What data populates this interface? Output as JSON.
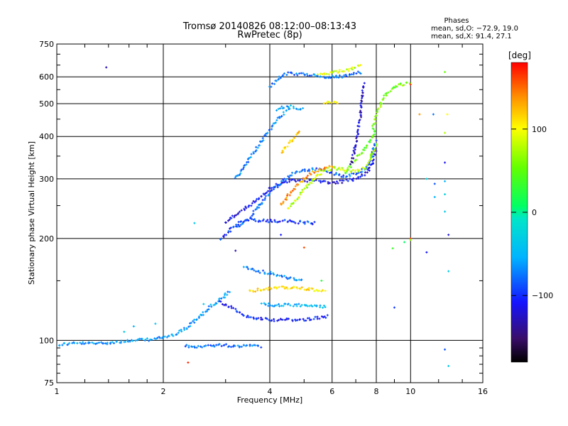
{
  "chart_data": {
    "type": "scatter",
    "title": "Tromsø 20140826 08:12:00–08:13:43",
    "subtitle": "RwPretec (8p)",
    "xlabel": "Frequency [MHz]",
    "ylabel": "Stationary phase Virtual Height [km]",
    "x_scale": "log",
    "y_scale": "log",
    "xlim": [
      1,
      16
    ],
    "ylim": [
      75,
      750
    ],
    "grid": true,
    "xticks": [
      1,
      2,
      4,
      6,
      8,
      10,
      16
    ],
    "xtick_labels": [
      "1",
      "2",
      "4",
      "6",
      "8",
      "10",
      "16"
    ],
    "yticks": [
      75,
      100,
      200,
      300,
      400,
      500,
      600,
      750
    ],
    "ytick_labels": [
      "75",
      "100",
      "200",
      "300",
      "400",
      "500",
      "600",
      "750"
    ],
    "phase_box": {
      "heading": "Phases",
      "line_o": "mean, sd,O: −72.9, 19.0",
      "line_x": "mean, sd,X:  91.4, 27.1"
    },
    "colorbar": {
      "label": "[deg]",
      "range": [
        -180,
        180
      ],
      "ticks": [
        100,
        0,
        -100
      ],
      "tick_labels": [
        "100",
        "0",
        "−100"
      ]
    },
    "traces": [
      {
        "x": [
          1.0,
          1.1,
          1.3,
          1.5,
          1.7,
          1.9,
          2.1,
          2.3,
          2.5,
          2.7,
          2.9,
          3.1
        ],
        "y": [
          97,
          98,
          98,
          99,
          100,
          101,
          103,
          108,
          116,
          125,
          132,
          140
        ],
        "phase": -70
      },
      {
        "x": [
          2.9,
          3.1,
          3.3,
          3.5,
          3.8,
          4.1,
          4.4,
          4.7,
          5.0,
          5.3,
          5.6,
          5.9
        ],
        "y": [
          130,
          125,
          120,
          117,
          116,
          115,
          115,
          115,
          115,
          116,
          117,
          118
        ],
        "phase": -105
      },
      {
        "x": [
          3.5,
          3.9,
          4.3,
          4.7,
          5.0,
          5.3,
          5.6,
          5.8
        ],
        "y": [
          140,
          142,
          143,
          143,
          142,
          141,
          140,
          140
        ],
        "phase": 110
      },
      {
        "x": [
          3.8,
          4.1,
          4.4,
          4.7,
          5.0,
          5.4,
          5.8
        ],
        "y": [
          128,
          127,
          127,
          127,
          127,
          126,
          126
        ],
        "phase": -55
      },
      {
        "x": [
          3.4,
          3.7,
          4.0,
          4.3,
          4.6,
          5.0
        ],
        "y": [
          165,
          160,
          158,
          155,
          152,
          150
        ],
        "phase": -75
      },
      {
        "x": [
          2.3,
          2.6,
          2.9,
          3.2,
          3.5,
          3.8
        ],
        "y": [
          96,
          96,
          97,
          96,
          97,
          96
        ],
        "phase": -80
      },
      {
        "x": [
          2.9,
          3.0,
          3.1,
          3.2,
          3.3,
          3.5,
          3.7,
          4.0,
          4.3,
          4.6,
          5.0,
          5.4
        ],
        "y": [
          200,
          205,
          212,
          218,
          223,
          226,
          226,
          225,
          225,
          224,
          223,
          222
        ],
        "phase": -100
      },
      {
        "x": [
          3.0,
          3.2,
          3.5,
          3.8,
          4.1,
          4.4,
          4.7,
          5.0,
          5.3,
          5.6,
          6.0,
          6.5,
          7.0,
          7.4,
          7.8,
          8.0
        ],
        "y": [
          222,
          235,
          250,
          268,
          285,
          294,
          297,
          297,
          296,
          294,
          292,
          295,
          300,
          310,
          330,
          370
        ],
        "phase": -115
      },
      {
        "x": [
          3.2,
          3.5,
          3.8,
          4.1,
          4.4,
          4.7,
          5.0,
          5.3,
          5.6,
          6.0,
          6.5,
          7.0,
          7.4,
          7.7,
          8.0
        ],
        "y": [
          215,
          230,
          255,
          280,
          300,
          312,
          318,
          320,
          318,
          312,
          305,
          310,
          320,
          340,
          390
        ],
        "phase": -85
      },
      {
        "x": [
          4.5,
          4.8,
          5.1,
          5.4,
          5.7,
          6.0,
          6.3,
          6.6,
          7.0,
          7.5,
          8.0
        ],
        "y": [
          245,
          265,
          285,
          305,
          318,
          322,
          322,
          318,
          315,
          325,
          380
        ],
        "phase": 80
      },
      {
        "x": [
          4.3,
          4.6,
          4.9,
          5.2,
          5.5,
          5.8,
          6.1
        ],
        "y": [
          250,
          275,
          295,
          310,
          320,
          325,
          325
        ],
        "phase": 140
      },
      {
        "x": [
          6.5,
          6.8,
          7.1,
          7.4,
          7.7,
          8.0
        ],
        "y": [
          310,
          330,
          350,
          370,
          390,
          420
        ],
        "phase": 55
      },
      {
        "x": [
          3.2,
          3.4,
          3.6,
          3.8,
          4.0,
          4.2,
          4.4,
          4.6
        ],
        "y": [
          300,
          330,
          360,
          390,
          420,
          450,
          470,
          485
        ],
        "phase": -75
      },
      {
        "x": [
          4.2,
          4.4,
          4.6,
          4.8,
          5.0
        ],
        "y": [
          480,
          490,
          490,
          485,
          480
        ],
        "phase": -60
      },
      {
        "x": [
          4.3,
          4.5,
          4.7,
          4.9
        ],
        "y": [
          360,
          380,
          400,
          420
        ],
        "phase": 120
      },
      {
        "x": [
          4.0,
          4.2,
          4.4,
          4.6,
          4.8,
          5.0,
          5.3,
          5.6,
          5.9,
          6.2,
          6.5,
          6.8,
          7.0,
          7.3
        ],
        "y": [
          560,
          590,
          610,
          615,
          612,
          608,
          605,
          602,
          600,
          600,
          602,
          608,
          615,
          620
        ],
        "phase": -80
      },
      {
        "x": [
          5.5,
          5.8,
          6.1,
          6.4,
          6.7,
          7.0,
          7.3
        ],
        "y": [
          610,
          615,
          620,
          625,
          630,
          640,
          650
        ],
        "phase": 90
      },
      {
        "x": [
          6.8,
          7.0,
          7.2,
          7.3,
          7.4
        ],
        "y": [
          330,
          380,
          450,
          520,
          580
        ],
        "phase": -125
      },
      {
        "x": [
          5.7,
          6.0,
          6.3
        ],
        "y": [
          505,
          505,
          505
        ],
        "phase": 100
      },
      {
        "x": [
          7.8,
          8.0,
          8.3,
          8.6,
          9.0,
          9.5,
          10.0
        ],
        "y": [
          420,
          460,
          510,
          540,
          560,
          570,
          575
        ],
        "phase": 60
      }
    ],
    "points": [
      {
        "x": 1.38,
        "y": 640,
        "phase": -130
      },
      {
        "x": 2.45,
        "y": 222,
        "phase": -45
      },
      {
        "x": 3.2,
        "y": 184,
        "phase": -130
      },
      {
        "x": 2.35,
        "y": 86,
        "phase": 170
      },
      {
        "x": 5.0,
        "y": 188,
        "phase": 160
      },
      {
        "x": 8.9,
        "y": 187,
        "phase": 40
      },
      {
        "x": 9.6,
        "y": 195,
        "phase": 10
      },
      {
        "x": 10.0,
        "y": 200,
        "phase": 170
      },
      {
        "x": 9.0,
        "y": 125,
        "phase": -100
      },
      {
        "x": 10.0,
        "y": 570,
        "phase": 170
      },
      {
        "x": 10.0,
        "y": 198,
        "phase": 70
      },
      {
        "x": 10.6,
        "y": 465,
        "phase": 140
      },
      {
        "x": 11.6,
        "y": 465,
        "phase": -80
      },
      {
        "x": 11.1,
        "y": 300,
        "phase": -30
      },
      {
        "x": 11.1,
        "y": 182,
        "phase": -110
      },
      {
        "x": 11.7,
        "y": 290,
        "phase": -90
      },
      {
        "x": 11.7,
        "y": 265,
        "phase": -60
      },
      {
        "x": 12.5,
        "y": 410,
        "phase": 80
      },
      {
        "x": 12.5,
        "y": 335,
        "phase": -115
      },
      {
        "x": 12.5,
        "y": 295,
        "phase": -60
      },
      {
        "x": 12.5,
        "y": 270,
        "phase": -30
      },
      {
        "x": 12.5,
        "y": 240,
        "phase": -40
      },
      {
        "x": 12.8,
        "y": 205,
        "phase": -120
      },
      {
        "x": 12.8,
        "y": 160,
        "phase": -40
      },
      {
        "x": 12.5,
        "y": 94,
        "phase": -90
      },
      {
        "x": 12.8,
        "y": 84,
        "phase": -40
      },
      {
        "x": 12.7,
        "y": 465,
        "phase": 100
      },
      {
        "x": 12.5,
        "y": 620,
        "phase": 60
      },
      {
        "x": 1.65,
        "y": 110,
        "phase": -60
      },
      {
        "x": 1.55,
        "y": 106,
        "phase": -40
      },
      {
        "x": 1.9,
        "y": 112,
        "phase": -50
      },
      {
        "x": 4.3,
        "y": 205,
        "phase": -110
      },
      {
        "x": 5.6,
        "y": 150,
        "phase": 30
      },
      {
        "x": 2.6,
        "y": 128,
        "phase": -35
      },
      {
        "x": 2.55,
        "y": 119,
        "phase": -50
      }
    ]
  }
}
